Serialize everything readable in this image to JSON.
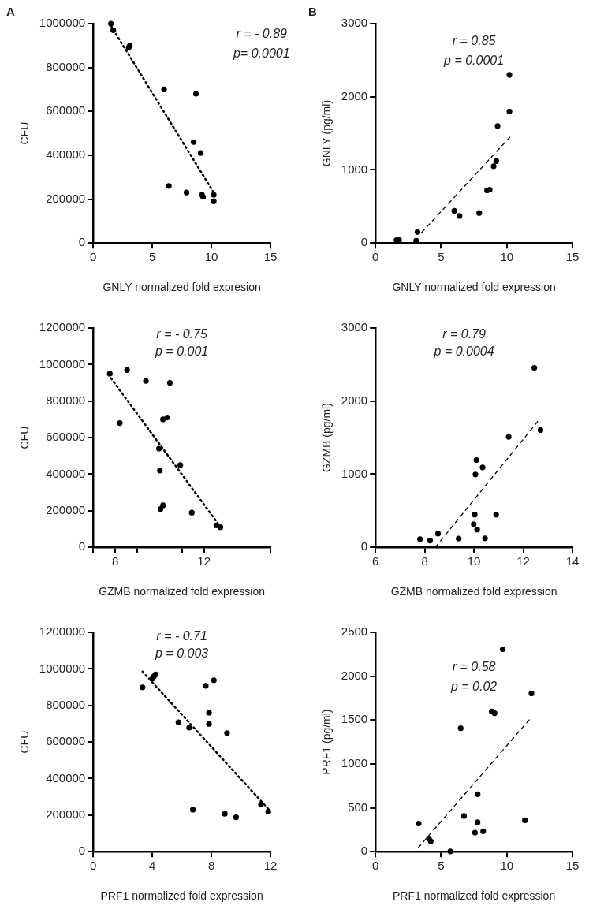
{
  "chart_data": [
    {
      "type": "scatter",
      "xlabel": "GNLY normalized fold expresion",
      "ylabel": "CFU",
      "xlim": [
        0,
        15
      ],
      "ylim": [
        0,
        1000000
      ],
      "xticks": [
        0,
        5,
        10,
        15
      ],
      "yticks": [
        0,
        200000,
        400000,
        600000,
        800000,
        1000000
      ],
      "grid": false,
      "legend": false,
      "marker": "circle",
      "annotations": [
        "A",
        "r = - 0.89",
        "p= 0.0001"
      ],
      "series": [
        {
          "color": "#000000",
          "x": [
            1.5,
            1.7,
            3.0,
            3.1,
            6.0,
            8.7,
            8.5,
            9.1,
            6.4,
            7.9,
            9.2,
            9.3,
            10.2,
            10.2
          ],
          "values": [
            1000000,
            970000,
            890000,
            900000,
            700000,
            680000,
            460000,
            410000,
            260000,
            230000,
            220000,
            210000,
            220000,
            190000
          ]
        },
        {
          "type": "line",
          "color": "#000000",
          "line_style": "dotted",
          "marker": "none",
          "x": [
            1.5,
            10.2
          ],
          "values": [
            990000,
            230000
          ]
        }
      ]
    },
    {
      "type": "scatter",
      "xlabel": "GNLY normalized fold expression",
      "ylabel": "GNLY (pg/ml)",
      "xlim": [
        0,
        15
      ],
      "ylim": [
        0,
        3000
      ],
      "xticks": [
        0,
        5,
        10,
        15
      ],
      "yticks": [
        0,
        1000,
        2000,
        3000
      ],
      "grid": false,
      "legend": false,
      "marker": "circle",
      "annotations": [
        "B",
        "r = 0.85",
        "p = 0.0001"
      ],
      "series": [
        {
          "color": "#000000",
          "x": [
            1.6,
            1.8,
            3.1,
            3.2,
            6.0,
            6.4,
            7.9,
            8.5,
            8.7,
            9.0,
            9.2,
            9.3,
            10.2,
            10.2
          ],
          "values": [
            40,
            40,
            30,
            150,
            440,
            370,
            410,
            720,
            730,
            1050,
            1120,
            1600,
            2300,
            1800
          ]
        },
        {
          "type": "line",
          "color": "#000000",
          "line_style": "dashed",
          "marker": "none",
          "x": [
            3.5,
            10.25
          ],
          "values": [
            140,
            1450
          ]
        }
      ]
    },
    {
      "type": "scatter",
      "xlabel": "GZMB normalized fold expression",
      "ylabel": "CFU",
      "xlim": [
        7,
        15
      ],
      "ylim": [
        0,
        1200000
      ],
      "xticks": [
        {
          "value": 7,
          "label": null
        },
        8,
        {
          "value": 9,
          "label": null
        },
        {
          "value": 11,
          "label": null
        },
        12,
        {
          "value": 15,
          "label": null
        }
      ],
      "yticks": [
        0,
        200000,
        400000,
        600000,
        800000,
        1000000,
        1200000
      ],
      "grid": false,
      "legend": false,
      "marker": "circle",
      "annotations": [
        "r = - 0.75",
        "p = 0.001"
      ],
      "series": [
        {
          "color": "#000000",
          "x": [
            7.75,
            8.53,
            9.38,
            10.46,
            8.2,
            10.15,
            10.34,
            9.97,
            10.93,
            10.01,
            10.15,
            10.04,
            11.45,
            12.56,
            12.74
          ],
          "values": [
            950000,
            970000,
            910000,
            900000,
            680000,
            700000,
            710000,
            540000,
            450000,
            420000,
            230000,
            210000,
            190000,
            120000,
            110000
          ]
        },
        {
          "type": "line",
          "color": "#000000",
          "line_style": "dotted",
          "marker": "none",
          "x": [
            7.67,
            12.64
          ],
          "values": [
            947000,
            129000
          ]
        }
      ]
    },
    {
      "type": "scatter",
      "xlabel": "GZMB normalized fold expression",
      "ylabel": "GZMB (pg/ml)",
      "xlim": [
        6,
        14
      ],
      "ylim": [
        0,
        3000
      ],
      "xticks": [
        6,
        8,
        10,
        12,
        14
      ],
      "yticks": [
        0,
        1000,
        2000,
        3000
      ],
      "grid": false,
      "legend": false,
      "marker": "circle",
      "annotations": [
        "r = 0.79",
        "p = 0.0004"
      ],
      "series": [
        {
          "color": "#000000",
          "x": [
            7.81,
            8.22,
            8.54,
            9.38,
            10.03,
            9.99,
            10.13,
            10.45,
            10.1,
            10.35,
            10.06,
            10.9,
            11.41,
            12.45,
            12.7
          ],
          "values": [
            112,
            93,
            187,
            119,
            448,
            317,
            243,
            123,
            1194,
            1093,
            996,
            448,
            1511,
            2455,
            1604
          ]
        },
        {
          "type": "line",
          "color": "#000000",
          "line_style": "dashed",
          "marker": "none",
          "x": [
            8.43,
            12.67
          ],
          "values": [
            0,
            1754
          ]
        }
      ]
    },
    {
      "type": "scatter",
      "xlabel": "PRF1 normalized fold expression",
      "ylabel": "CFU",
      "xlim": [
        0,
        12
      ],
      "ylim": [
        0,
        1200000
      ],
      "xticks": [
        0,
        4,
        8,
        12
      ],
      "yticks": [
        0,
        200000,
        400000,
        600000,
        800000,
        1000000,
        1200000
      ],
      "grid": false,
      "legend": false,
      "marker": "circle",
      "annotations": [
        "r = - 0.71",
        "p = 0.003"
      ],
      "series": [
        {
          "color": "#000000",
          "x": [
            3.34,
            3.99,
            4.12,
            4.23,
            5.77,
            6.5,
            6.75,
            7.62,
            8.17,
            7.84,
            7.84,
            9.06,
            8.91,
            9.67,
            11.36,
            11.85
          ],
          "values": [
            899000,
            945000,
            960000,
            970000,
            708000,
            678000,
            230000,
            907000,
            938000,
            760000,
            699000,
            649000,
            207000,
            188000,
            259000,
            219000
          ]
        },
        {
          "type": "line",
          "color": "#000000",
          "line_style": "dotted",
          "marker": "none",
          "x": [
            3.34,
            11.85
          ],
          "values": [
            985000,
            234000
          ]
        }
      ]
    },
    {
      "type": "scatter",
      "xlabel": "PRF1 normalized fold expression",
      "ylabel": "PRF1 (pg/ml)",
      "xlim": [
        0,
        15
      ],
      "ylim": [
        0,
        2500
      ],
      "xticks": [
        0,
        5,
        10,
        15
      ],
      "yticks": [
        0,
        500,
        1000,
        1500,
        2000,
        2500
      ],
      "grid": false,
      "legend": false,
      "marker": "circle",
      "annotations": [
        "r = 0.58",
        "p = 0.02"
      ],
      "series": [
        {
          "color": "#000000",
          "x": [
            3.29,
            4.07,
            4.21,
            5.7,
            6.49,
            6.74,
            7.78,
            7.78,
            7.58,
            8.2,
            8.85,
            9.07,
            9.69,
            11.38,
            11.88
          ],
          "values": [
            320,
            149,
            118,
            3,
            1407,
            407,
            655,
            335,
            217,
            233,
            1599,
            1578,
            2307,
            357,
            1804
          ]
        },
        {
          "type": "line",
          "color": "#000000",
          "line_style": "dashed",
          "marker": "none",
          "x": [
            3.23,
            11.74
          ],
          "values": [
            40,
            1509
          ]
        }
      ]
    }
  ]
}
